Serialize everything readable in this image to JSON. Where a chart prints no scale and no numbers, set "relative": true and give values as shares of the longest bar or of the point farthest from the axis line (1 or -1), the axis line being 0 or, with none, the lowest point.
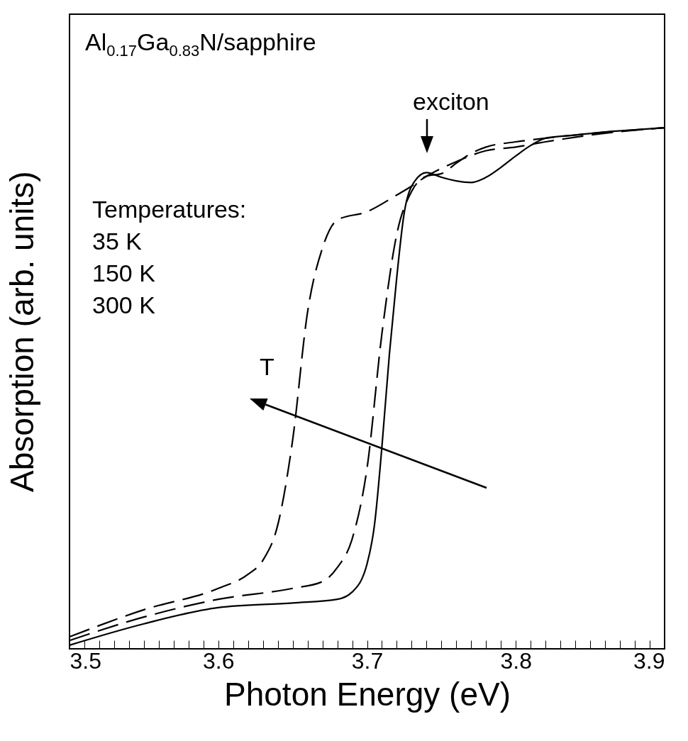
{
  "chart_data": {
    "type": "line",
    "title": "Al$_{0.17}$Ga$_{0.83}$N/sapphire",
    "xlabel": "Photon Energy (eV)",
    "ylabel": "Absorption (arb. units)",
    "relative": true,
    "xlim": [
      3.5,
      3.9
    ],
    "xticks": [
      3.5,
      {
        "value": 3.51,
        "label": null
      },
      {
        "value": 3.52,
        "label": null
      },
      {
        "value": 3.53,
        "label": null
      },
      {
        "value": 3.54,
        "label": null
      },
      {
        "value": 3.55,
        "label": null
      },
      {
        "value": 3.56,
        "label": null
      },
      {
        "value": 3.57,
        "label": null
      },
      {
        "value": 3.58,
        "label": null
      },
      {
        "value": 3.59,
        "label": null
      },
      3.6,
      {
        "value": 3.61,
        "label": null
      },
      {
        "value": 3.62,
        "label": null
      },
      {
        "value": 3.63,
        "label": null
      },
      {
        "value": 3.64,
        "label": null
      },
      {
        "value": 3.65,
        "label": null
      },
      {
        "value": 3.66,
        "label": null
      },
      {
        "value": 3.67,
        "label": null
      },
      {
        "value": 3.68,
        "label": null
      },
      {
        "value": 3.69,
        "label": null
      },
      3.7,
      {
        "value": 3.71,
        "label": null
      },
      {
        "value": 3.72,
        "label": null
      },
      {
        "value": 3.73,
        "label": null
      },
      {
        "value": 3.74,
        "label": null
      },
      {
        "value": 3.75,
        "label": null
      },
      {
        "value": 3.76,
        "label": null
      },
      {
        "value": 3.77,
        "label": null
      },
      {
        "value": 3.78,
        "label": null
      },
      {
        "value": 3.79,
        "label": null
      },
      3.8,
      {
        "value": 3.81,
        "label": null
      },
      {
        "value": 3.82,
        "label": null
      },
      {
        "value": 3.83,
        "label": null
      },
      {
        "value": 3.84,
        "label": null
      },
      {
        "value": 3.85,
        "label": null
      },
      {
        "value": 3.86,
        "label": null
      },
      {
        "value": 3.87,
        "label": null
      },
      {
        "value": 3.88,
        "label": null
      },
      {
        "value": 3.89,
        "label": null
      },
      3.9
    ],
    "series": [
      {
        "color": "#000000",
        "line_style": "solid",
        "x": [
          3.5,
          3.55,
          3.6,
          3.65,
          3.68,
          3.69,
          3.7,
          3.705,
          3.71,
          3.715,
          3.72,
          3.725,
          3.73,
          3.74,
          3.75,
          3.76,
          3.77,
          3.78,
          3.79,
          3.8,
          3.81,
          3.82,
          3.84,
          3.86,
          3.88,
          3.9
        ],
        "values": [
          0.007,
          0.048,
          0.079,
          0.088,
          0.095,
          0.109,
          0.163,
          0.238,
          0.388,
          0.565,
          0.714,
          0.837,
          0.888,
          0.914,
          0.905,
          0.898,
          0.895,
          0.905,
          0.924,
          0.946,
          0.966,
          0.98,
          0.986,
          0.992,
          0.996,
          1
        ]
      },
      {
        "color": "#000000",
        "line_style": "dashed",
        "x": [
          3.5,
          3.55,
          3.6,
          3.65,
          3.67,
          3.68,
          3.69,
          3.7,
          3.71,
          3.72,
          3.73,
          3.74,
          3.75,
          3.76,
          3.77,
          3.78,
          3.8,
          3.82,
          3.85,
          3.9
        ],
        "values": [
          0.016,
          0.061,
          0.095,
          0.116,
          0.129,
          0.156,
          0.211,
          0.347,
          0.605,
          0.796,
          0.878,
          0.907,
          0.912,
          0.932,
          0.951,
          0.963,
          0.973,
          0.98,
          0.989,
          1
        ]
      },
      {
        "color": "#000000",
        "line_style": "dashed",
        "x": [
          3.5,
          3.55,
          3.6,
          3.62,
          3.63,
          3.64,
          3.65,
          3.66,
          3.67,
          3.68,
          3.7,
          3.72,
          3.73,
          3.74,
          3.76,
          3.78,
          3.8,
          3.82,
          3.85,
          3.9
        ],
        "values": [
          0.023,
          0.075,
          0.116,
          0.143,
          0.17,
          0.238,
          0.401,
          0.646,
          0.769,
          0.823,
          0.839,
          0.871,
          0.888,
          0.907,
          0.935,
          0.956,
          0.963,
          0.973,
          0.986,
          1
        ]
      }
    ],
    "annotations": [
      "Temperatures:",
      "35 K",
      "150 K",
      "300 K",
      "exciton",
      "T"
    ]
  }
}
